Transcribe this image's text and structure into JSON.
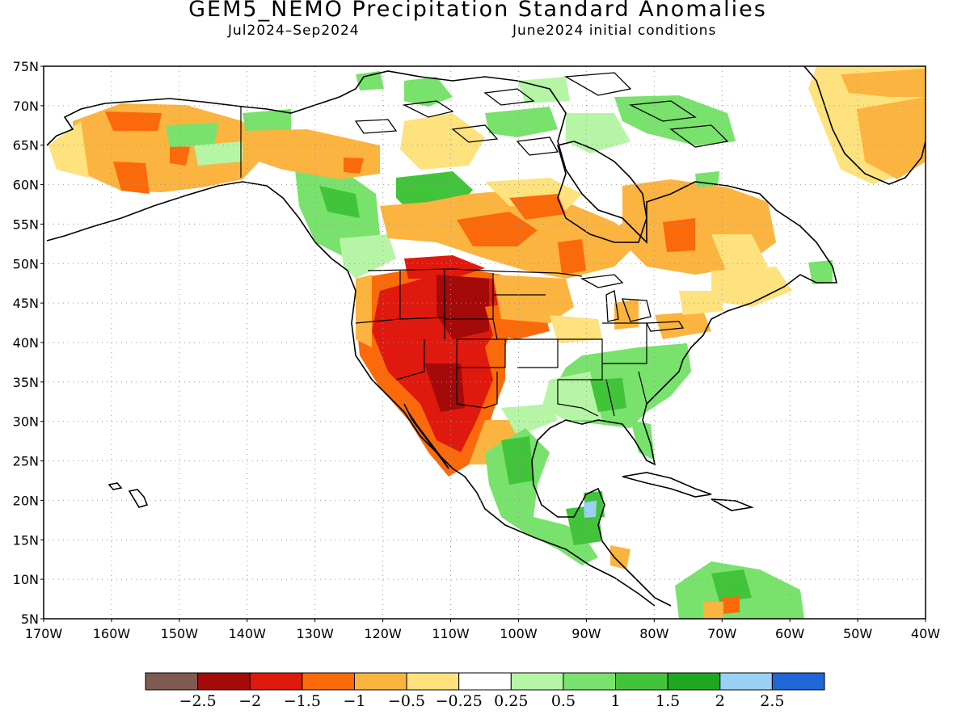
{
  "title": "GEM5_NEMO Precipitation Standard Anomalies",
  "period": "Jul2024–Sep2024",
  "init": "June2024 initial conditions",
  "map": {
    "lon_range": [
      -170,
      -40
    ],
    "lat_range": [
      5,
      75
    ],
    "lat_ticks": [
      "75N",
      "70N",
      "65N",
      "60N",
      "55N",
      "50N",
      "45N",
      "40N",
      "35N",
      "30N",
      "25N",
      "20N",
      "15N",
      "10N",
      "5N"
    ],
    "lon_ticks": [
      "170W",
      "160W",
      "150W",
      "140W",
      "130W",
      "120W",
      "110W",
      "100W",
      "90W",
      "80W",
      "70W",
      "60W",
      "50W",
      "40W"
    ],
    "gridlines": "dotted"
  },
  "colorbar": {
    "colors": [
      "#7f5a4e",
      "#a50a0a",
      "#e0190e",
      "#fa6a0a",
      "#fbb43f",
      "#fde27d",
      "#ffffff",
      "#b6f5a6",
      "#78e26c",
      "#42c43a",
      "#1fa81f",
      "#9ad2f5",
      "#1f66d6"
    ],
    "labels": [
      "−2.5",
      "−2",
      "−1.5",
      "−1",
      "−0.5",
      "−0.25",
      "0.25",
      "0.5",
      "1",
      "1.5",
      "2",
      "2.5"
    ]
  }
}
